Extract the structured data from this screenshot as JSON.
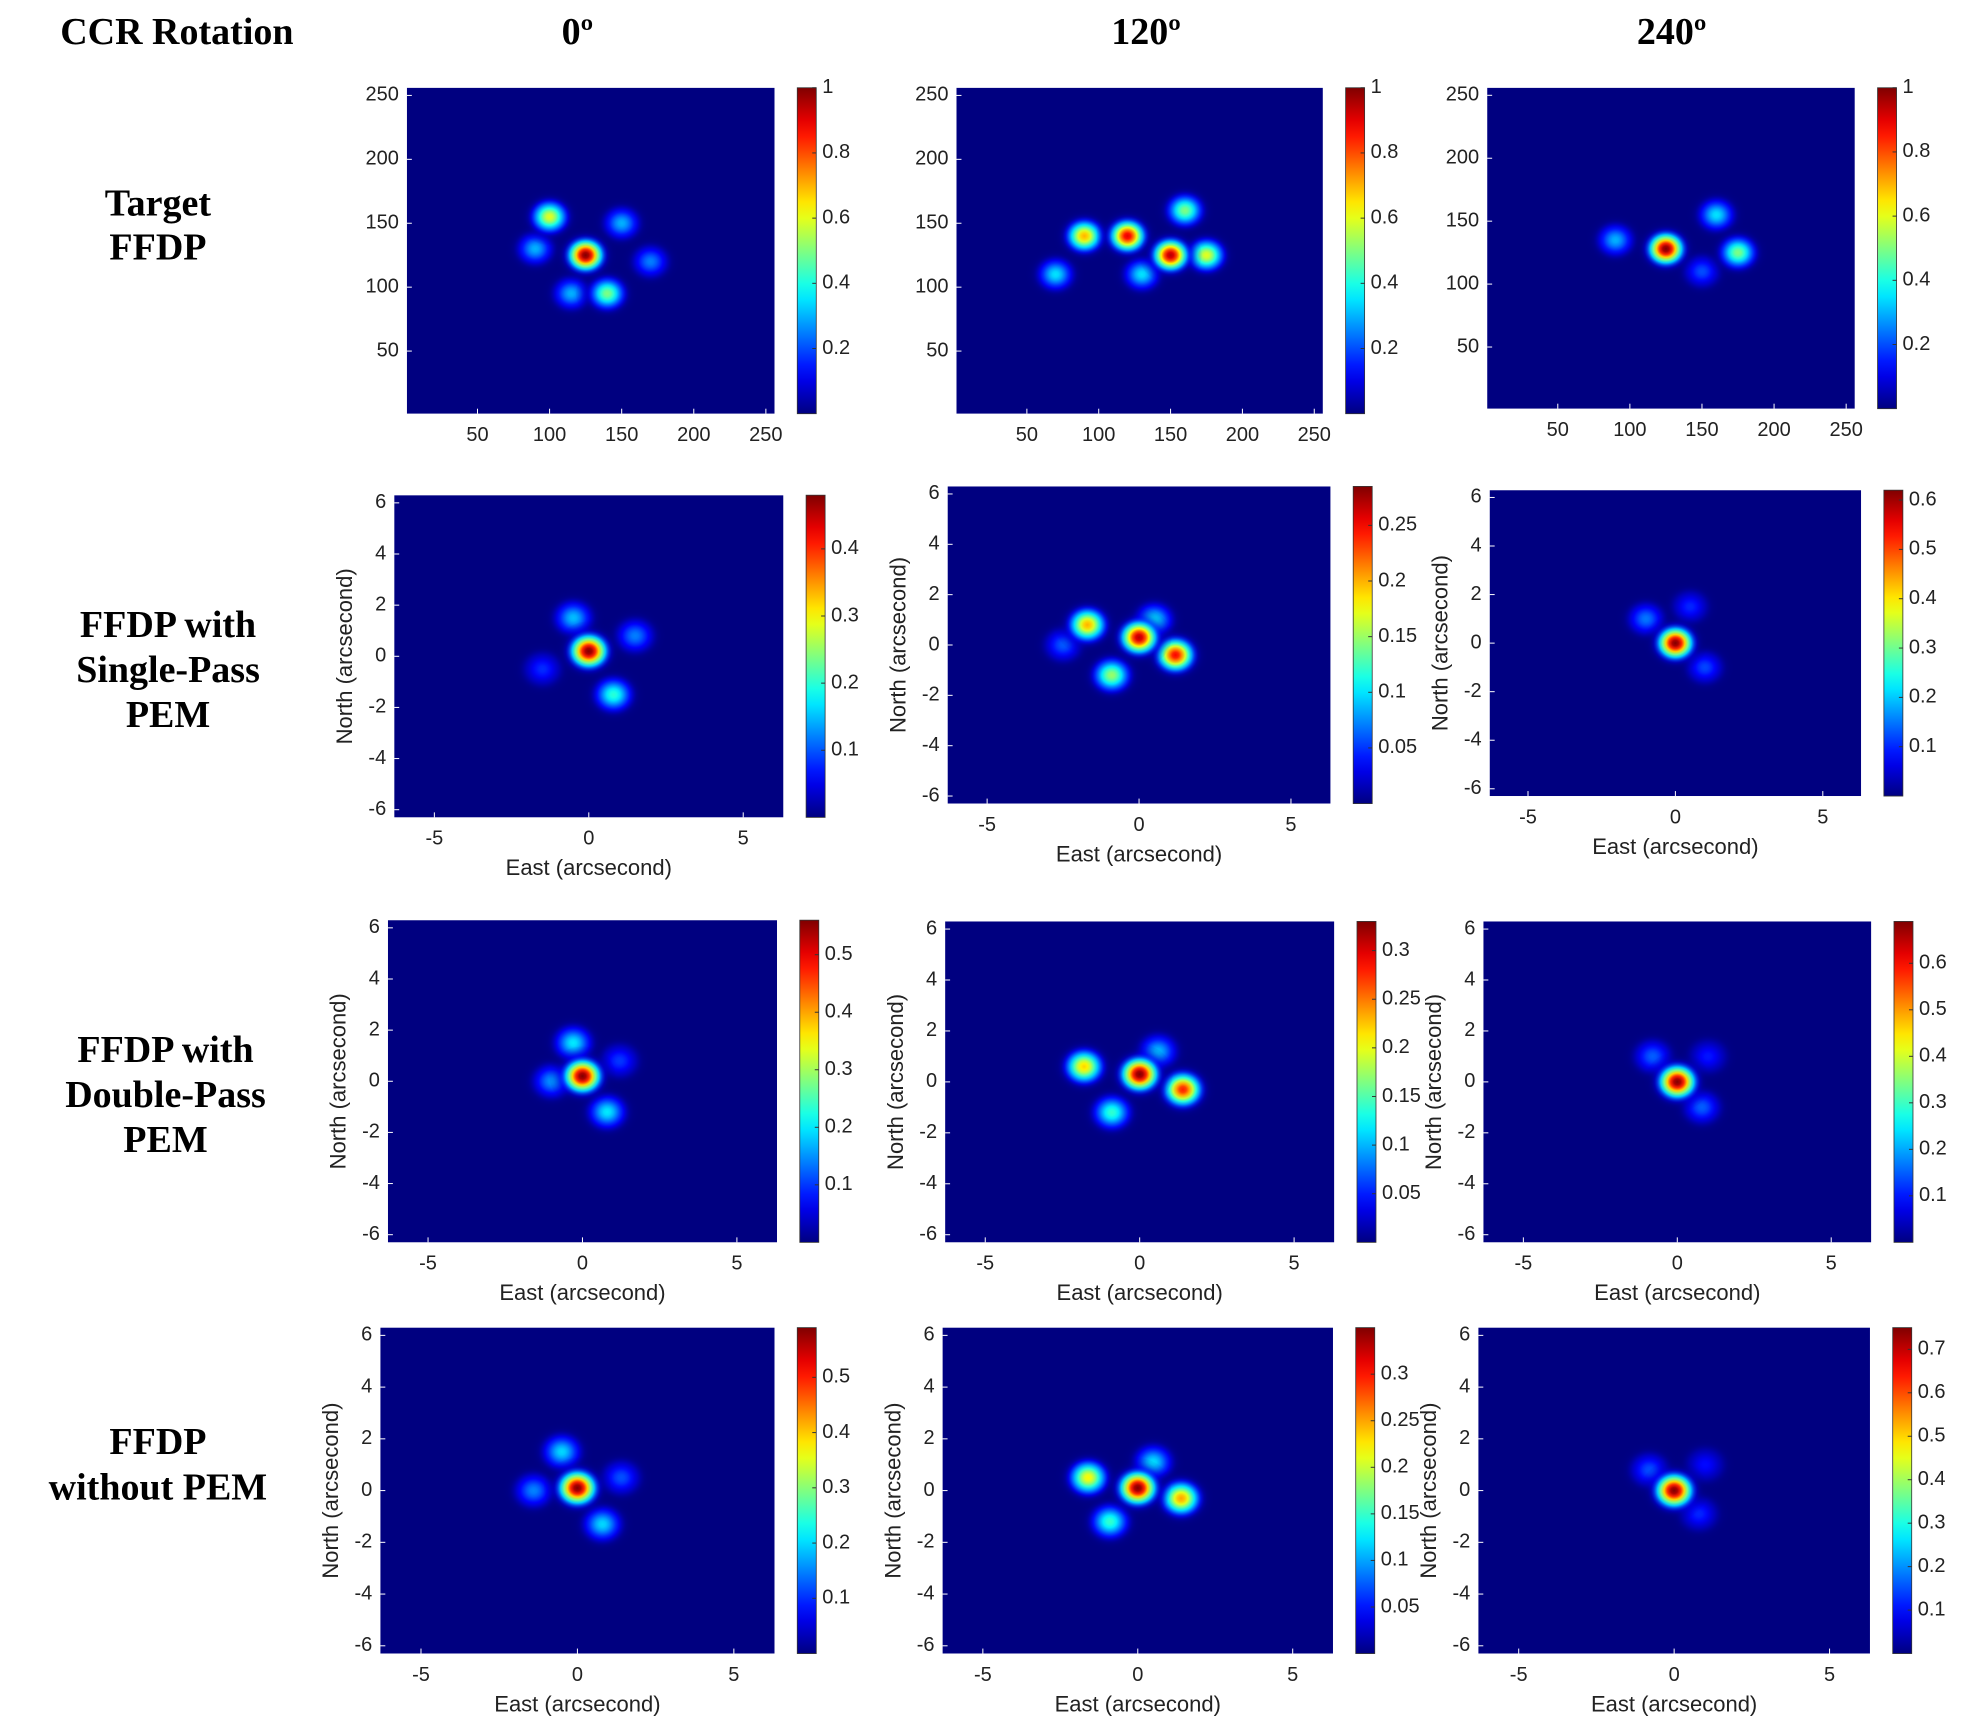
{
  "column_header": "CCR Rotation",
  "columns": [
    "0º",
    "120º",
    "240º"
  ],
  "rows": [
    [
      "Target",
      "FFDP"
    ],
    [
      "FFDP with",
      "Single-Pass",
      "PEM"
    ],
    [
      "FFDP with",
      "Double-Pass",
      "PEM"
    ],
    [
      "FFDP",
      "without PEM"
    ]
  ],
  "chart_data": [
    {
      "type": "heatmap",
      "colormap": "jet",
      "xlim": [
        1,
        256
      ],
      "ylim": [
        1,
        256
      ],
      "xticks": [
        50,
        100,
        150,
        200,
        250
      ],
      "yticks": [
        50,
        100,
        150,
        200,
        250
      ],
      "clim": [
        0,
        1
      ],
      "cticks": [
        0.2,
        0.4,
        0.6,
        0.8,
        1
      ],
      "blobs": [
        {
          "x": 90,
          "y": 130,
          "value": 0.3
        },
        {
          "x": 170,
          "y": 120,
          "value": 0.25
        },
        {
          "x": 150,
          "y": 150,
          "value": 0.3
        },
        {
          "x": 115,
          "y": 95,
          "value": 0.3
        },
        {
          "x": 140,
          "y": 95,
          "value": 0.5
        },
        {
          "x": 100,
          "y": 155,
          "value": 0.6
        },
        {
          "x": 125,
          "y": 125,
          "value": 1
        }
      ]
    },
    {
      "type": "heatmap",
      "colormap": "jet",
      "xlim": [
        1,
        256
      ],
      "ylim": [
        1,
        256
      ],
      "xticks": [
        50,
        100,
        150,
        200,
        250
      ],
      "yticks": [
        50,
        100,
        150,
        200,
        250
      ],
      "clim": [
        0,
        1
      ],
      "cticks": [
        0.2,
        0.4,
        0.6,
        0.8,
        1
      ],
      "blobs": [
        {
          "x": 70,
          "y": 110,
          "value": 0.35
        },
        {
          "x": 130,
          "y": 110,
          "value": 0.35
        },
        {
          "x": 160,
          "y": 160,
          "value": 0.5
        },
        {
          "x": 175,
          "y": 125,
          "value": 0.6
        },
        {
          "x": 90,
          "y": 140,
          "value": 0.7
        },
        {
          "x": 120,
          "y": 140,
          "value": 0.9
        },
        {
          "x": 150,
          "y": 125,
          "value": 0.95
        }
      ]
    },
    {
      "type": "heatmap",
      "colormap": "jet",
      "xlim": [
        1,
        256
      ],
      "ylim": [
        1,
        256
      ],
      "xticks": [
        50,
        100,
        150,
        200,
        250
      ],
      "yticks": [
        50,
        100,
        150,
        200,
        250
      ],
      "clim": [
        0,
        1
      ],
      "cticks": [
        0.2,
        0.4,
        0.6,
        0.8,
        1
      ],
      "blobs": [
        {
          "x": 150,
          "y": 110,
          "value": 0.2
        },
        {
          "x": 90,
          "y": 135,
          "value": 0.3
        },
        {
          "x": 160,
          "y": 155,
          "value": 0.35
        },
        {
          "x": 175,
          "y": 125,
          "value": 0.5
        },
        {
          "x": 125,
          "y": 128,
          "value": 1
        }
      ]
    },
    {
      "type": "heatmap",
      "colormap": "jet",
      "xlabel": "East (arcsecond)",
      "ylabel": "North (arcsecond)",
      "xlim": [
        -6.3,
        6.3
      ],
      "ylim": [
        -6.3,
        6.3
      ],
      "xticks": [
        -5,
        0,
        5
      ],
      "yticks": [
        -6,
        -4,
        -2,
        0,
        2,
        4,
        6
      ],
      "clim": [
        0,
        0.48
      ],
      "cticks": [
        0.1,
        0.2,
        0.3,
        0.4
      ],
      "blobs": [
        {
          "x": -1.5,
          "y": -0.5,
          "value": 0.08
        },
        {
          "x": 1.5,
          "y": 0.8,
          "value": 0.12
        },
        {
          "x": -0.5,
          "y": 1.5,
          "value": 0.15
        },
        {
          "x": 0.8,
          "y": -1.5,
          "value": 0.2
        },
        {
          "x": 0,
          "y": 0.2,
          "value": 0.48
        }
      ]
    },
    {
      "type": "heatmap",
      "colormap": "jet",
      "xlabel": "East (arcsecond)",
      "ylabel": "North (arcsecond)",
      "xlim": [
        -6.3,
        6.3
      ],
      "ylim": [
        -6.3,
        6.3
      ],
      "xticks": [
        -5,
        0,
        5
      ],
      "yticks": [
        -6,
        -4,
        -2,
        0,
        2,
        4,
        6
      ],
      "clim": [
        0,
        0.285
      ],
      "cticks": [
        0.05,
        0.1,
        0.15,
        0.2,
        0.25
      ],
      "blobs": [
        {
          "x": -2.5,
          "y": 0,
          "value": 0.06
        },
        {
          "x": 0.5,
          "y": 1,
          "value": 0.1
        },
        {
          "x": -0.9,
          "y": -1.2,
          "value": 0.15
        },
        {
          "x": -1.7,
          "y": 0.8,
          "value": 0.2
        },
        {
          "x": 1.2,
          "y": -0.4,
          "value": 0.25
        },
        {
          "x": 0,
          "y": 0.3,
          "value": 0.27
        }
      ]
    },
    {
      "type": "heatmap",
      "colormap": "jet",
      "xlabel": "East (arcsecond)",
      "ylabel": "North (arcsecond)",
      "xlim": [
        -6.3,
        6.3
      ],
      "ylim": [
        -6.3,
        6.3
      ],
      "xticks": [
        -5,
        0,
        5
      ],
      "yticks": [
        -6,
        -4,
        -2,
        0,
        2,
        4,
        6
      ],
      "clim": [
        0,
        0.62
      ],
      "cticks": [
        0.1,
        0.2,
        0.3,
        0.4,
        0.5,
        0.6
      ],
      "blobs": [
        {
          "x": 0.5,
          "y": 1.5,
          "value": 0.1
        },
        {
          "x": 1,
          "y": -1,
          "value": 0.12
        },
        {
          "x": -1,
          "y": 1,
          "value": 0.15
        },
        {
          "x": 0,
          "y": 0,
          "value": 0.62
        }
      ]
    },
    {
      "type": "heatmap",
      "colormap": "jet",
      "xlabel": "East (arcsecond)",
      "ylabel": "North (arcsecond)",
      "xlim": [
        -6.3,
        6.3
      ],
      "ylim": [
        -6.3,
        6.3
      ],
      "xticks": [
        -5,
        0,
        5
      ],
      "yticks": [
        -6,
        -4,
        -2,
        0,
        2,
        4,
        6
      ],
      "clim": [
        0,
        0.56
      ],
      "cticks": [
        0.1,
        0.2,
        0.3,
        0.4,
        0.5
      ],
      "blobs": [
        {
          "x": 1.2,
          "y": 0.8,
          "value": 0.1
        },
        {
          "x": -1,
          "y": 0,
          "value": 0.15
        },
        {
          "x": -0.3,
          "y": 1.5,
          "value": 0.2
        },
        {
          "x": 0.8,
          "y": -1.2,
          "value": 0.2
        },
        {
          "x": 0,
          "y": 0.2,
          "value": 0.56
        }
      ]
    },
    {
      "type": "heatmap",
      "colormap": "jet",
      "xlabel": "East (arcsecond)",
      "ylabel": "North (arcsecond)",
      "xlim": [
        -6.3,
        6.3
      ],
      "ylim": [
        -6.3,
        6.3
      ],
      "xticks": [
        -5,
        0,
        5
      ],
      "yticks": [
        -6,
        -4,
        -2,
        0,
        2,
        4,
        6
      ],
      "clim": [
        0,
        0.33
      ],
      "cticks": [
        0.05,
        0.1,
        0.15,
        0.2,
        0.25,
        0.3
      ],
      "blobs": [
        {
          "x": 0.6,
          "y": 1.2,
          "value": 0.1
        },
        {
          "x": -0.9,
          "y": -1.2,
          "value": 0.14
        },
        {
          "x": -1.8,
          "y": 0.6,
          "value": 0.22
        },
        {
          "x": 1.4,
          "y": -0.3,
          "value": 0.28
        },
        {
          "x": 0,
          "y": 0.3,
          "value": 0.33
        }
      ]
    },
    {
      "type": "heatmap",
      "colormap": "jet",
      "xlabel": "East (arcsecond)",
      "ylabel": "North (arcsecond)",
      "xlim": [
        -6.3,
        6.3
      ],
      "ylim": [
        -6.3,
        6.3
      ],
      "xticks": [
        -5,
        0,
        5
      ],
      "yticks": [
        -6,
        -4,
        -2,
        0,
        2,
        4,
        6
      ],
      "clim": [
        0,
        0.69
      ],
      "cticks": [
        0.1,
        0.2,
        0.3,
        0.4,
        0.5,
        0.6
      ],
      "blobs": [
        {
          "x": 1,
          "y": 1,
          "value": 0.1
        },
        {
          "x": -0.8,
          "y": 1,
          "value": 0.15
        },
        {
          "x": 0.8,
          "y": -1,
          "value": 0.15
        },
        {
          "x": 0,
          "y": 0,
          "value": 0.69
        }
      ]
    },
    {
      "type": "heatmap",
      "colormap": "jet",
      "xlabel": "East (arcsecond)",
      "ylabel": "North (arcsecond)",
      "xlim": [
        -6.3,
        6.3
      ],
      "ylim": [
        -6.3,
        6.3
      ],
      "xticks": [
        -5,
        0,
        5
      ],
      "yticks": [
        -6,
        -4,
        -2,
        0,
        2,
        4,
        6
      ],
      "clim": [
        0,
        0.59
      ],
      "cticks": [
        0.1,
        0.2,
        0.3,
        0.4,
        0.5
      ],
      "blobs": [
        {
          "x": 1.4,
          "y": 0.5,
          "value": 0.12
        },
        {
          "x": -1.4,
          "y": 0,
          "value": 0.15
        },
        {
          "x": -0.5,
          "y": 1.5,
          "value": 0.2
        },
        {
          "x": 0.8,
          "y": -1.3,
          "value": 0.2
        },
        {
          "x": 0,
          "y": 0.1,
          "value": 0.59
        }
      ]
    },
    {
      "type": "heatmap",
      "colormap": "jet",
      "xlabel": "East (arcsecond)",
      "ylabel": "North (arcsecond)",
      "xlim": [
        -6.3,
        6.3
      ],
      "ylim": [
        -6.3,
        6.3
      ],
      "xticks": [
        -5,
        0,
        5
      ],
      "yticks": [
        -6,
        -4,
        -2,
        0,
        2,
        4,
        6
      ],
      "clim": [
        0,
        0.35
      ],
      "cticks": [
        0.05,
        0.1,
        0.15,
        0.2,
        0.25,
        0.3
      ],
      "blobs": [
        {
          "x": 0.5,
          "y": 1.1,
          "value": 0.12
        },
        {
          "x": -0.9,
          "y": -1.2,
          "value": 0.15
        },
        {
          "x": -1.6,
          "y": 0.5,
          "value": 0.22
        },
        {
          "x": 1.4,
          "y": -0.3,
          "value": 0.25
        },
        {
          "x": 0,
          "y": 0.1,
          "value": 0.35
        }
      ]
    },
    {
      "type": "heatmap",
      "colormap": "jet",
      "xlabel": "East (arcsecond)",
      "ylabel": "North (arcsecond)",
      "xlim": [
        -6.3,
        6.3
      ],
      "ylim": [
        -6.3,
        6.3
      ],
      "xticks": [
        -5,
        0,
        5
      ],
      "yticks": [
        -6,
        -4,
        -2,
        0,
        2,
        4,
        6
      ],
      "clim": [
        0,
        0.75
      ],
      "cticks": [
        0.1,
        0.2,
        0.3,
        0.4,
        0.5,
        0.6,
        0.7
      ],
      "blobs": [
        {
          "x": 1,
          "y": 1,
          "value": 0.1
        },
        {
          "x": 0.8,
          "y": -0.9,
          "value": 0.12
        },
        {
          "x": -0.8,
          "y": 0.8,
          "value": 0.15
        },
        {
          "x": 0,
          "y": 0,
          "value": 0.75
        }
      ]
    }
  ]
}
